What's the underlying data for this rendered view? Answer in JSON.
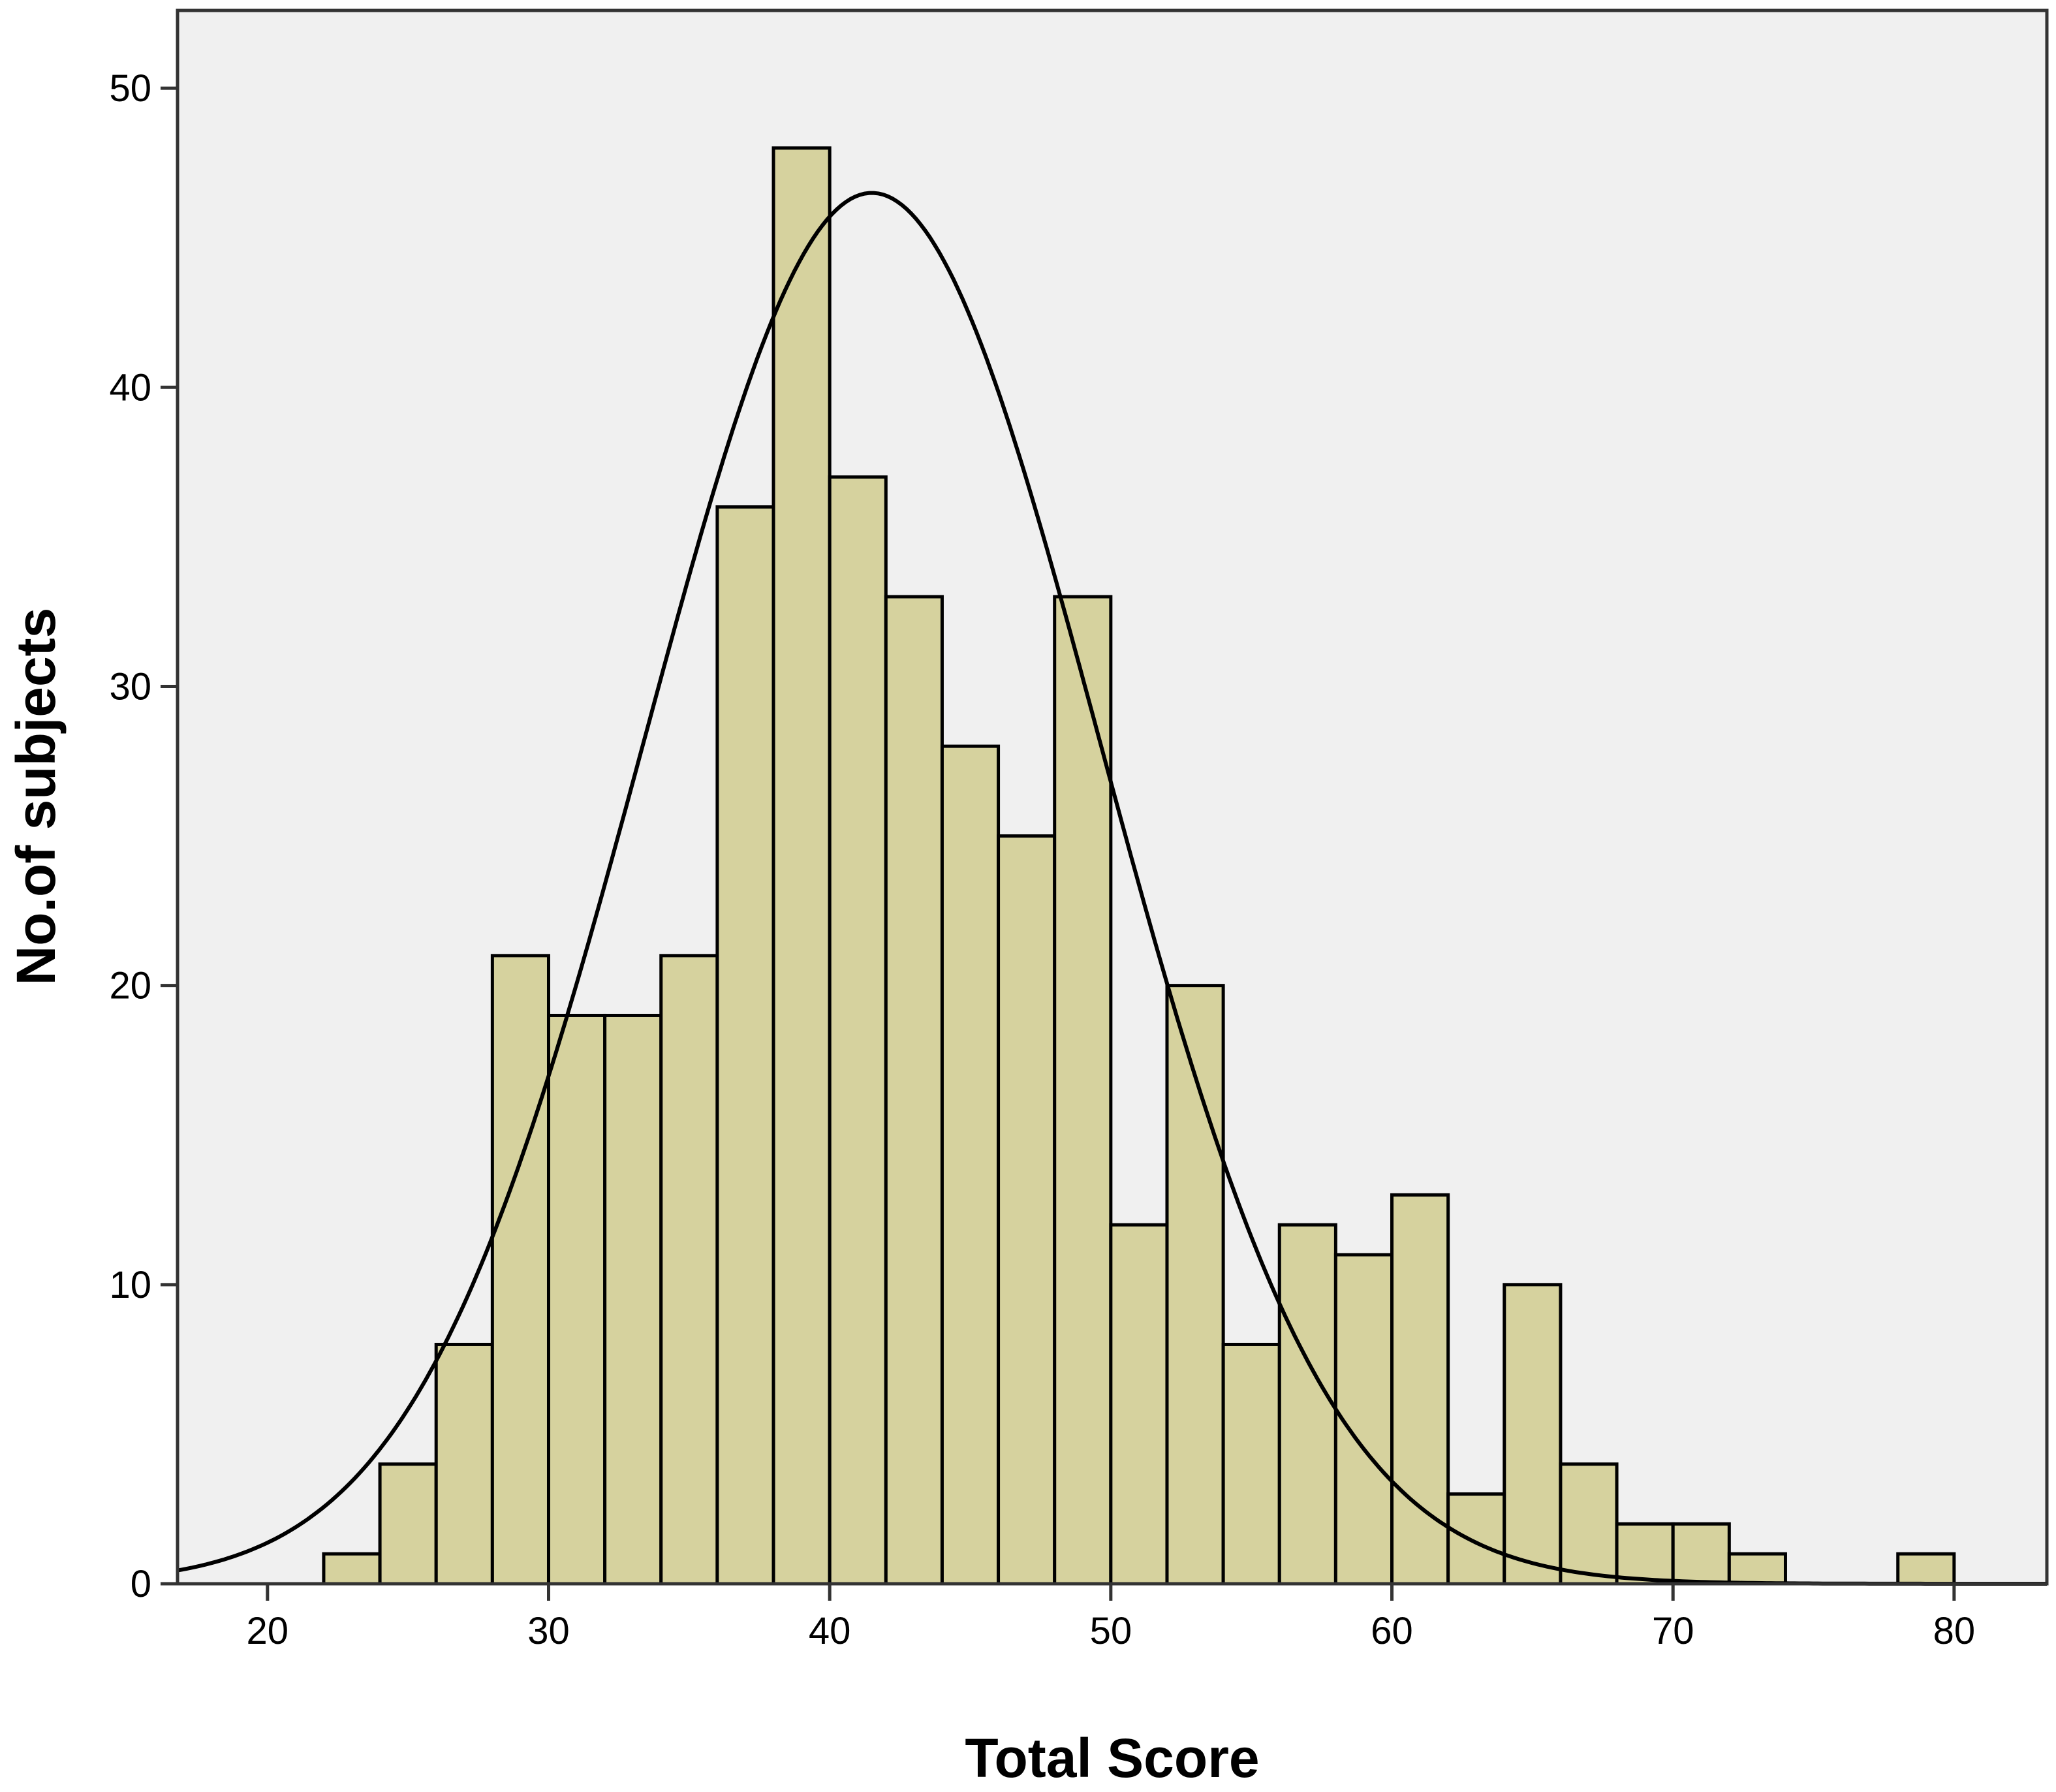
{
  "chart_data": {
    "type": "bar",
    "subtype": "histogram",
    "title": "",
    "xlabel": "Total Score",
    "ylabel": "No.of subjects",
    "bin_width": 2,
    "bins": [
      {
        "x0": 22,
        "x1": 24,
        "count": 1
      },
      {
        "x0": 24,
        "x1": 26,
        "count": 4
      },
      {
        "x0": 26,
        "x1": 28,
        "count": 8
      },
      {
        "x0": 28,
        "x1": 30,
        "count": 21
      },
      {
        "x0": 30,
        "x1": 32,
        "count": 19
      },
      {
        "x0": 32,
        "x1": 34,
        "count": 19
      },
      {
        "x0": 34,
        "x1": 36,
        "count": 21
      },
      {
        "x0": 36,
        "x1": 38,
        "count": 36
      },
      {
        "x0": 38,
        "x1": 40,
        "count": 48
      },
      {
        "x0": 40,
        "x1": 42,
        "count": 37
      },
      {
        "x0": 42,
        "x1": 44,
        "count": 33
      },
      {
        "x0": 44,
        "x1": 46,
        "count": 28
      },
      {
        "x0": 46,
        "x1": 48,
        "count": 25
      },
      {
        "x0": 48,
        "x1": 50,
        "count": 33
      },
      {
        "x0": 50,
        "x1": 52,
        "count": 12
      },
      {
        "x0": 52,
        "x1": 54,
        "count": 20
      },
      {
        "x0": 54,
        "x1": 56,
        "count": 8
      },
      {
        "x0": 56,
        "x1": 58,
        "count": 12
      },
      {
        "x0": 58,
        "x1": 60,
        "count": 11
      },
      {
        "x0": 60,
        "x1": 62,
        "count": 13
      },
      {
        "x0": 62,
        "x1": 64,
        "count": 3
      },
      {
        "x0": 64,
        "x1": 66,
        "count": 10
      },
      {
        "x0": 66,
        "x1": 68,
        "count": 4
      },
      {
        "x0": 68,
        "x1": 70,
        "count": 2
      },
      {
        "x0": 70,
        "x1": 72,
        "count": 2
      },
      {
        "x0": 72,
        "x1": 74,
        "count": 1
      },
      {
        "x0": 74,
        "x1": 76,
        "count": 0
      },
      {
        "x0": 76,
        "x1": 78,
        "count": 0
      },
      {
        "x0": 78,
        "x1": 80,
        "count": 1
      }
    ],
    "normal_curve": {
      "mean": 41.5,
      "sd": 8.1,
      "peak": 46.5
    },
    "xlim": [
      16.8,
      83.3
    ],
    "ylim": [
      0,
      52.6
    ],
    "xticks": [
      "20",
      "30",
      "40",
      "50",
      "60",
      "70",
      "80"
    ],
    "yticks": [
      "0",
      "10",
      "20",
      "30",
      "40",
      "50"
    ],
    "grid": false,
    "legend": "none",
    "colors": {
      "bar_fill": "#D6D29E",
      "bar_stroke": "#000000",
      "plot_background": "#F0F0F0",
      "curve": "#000000"
    }
  }
}
